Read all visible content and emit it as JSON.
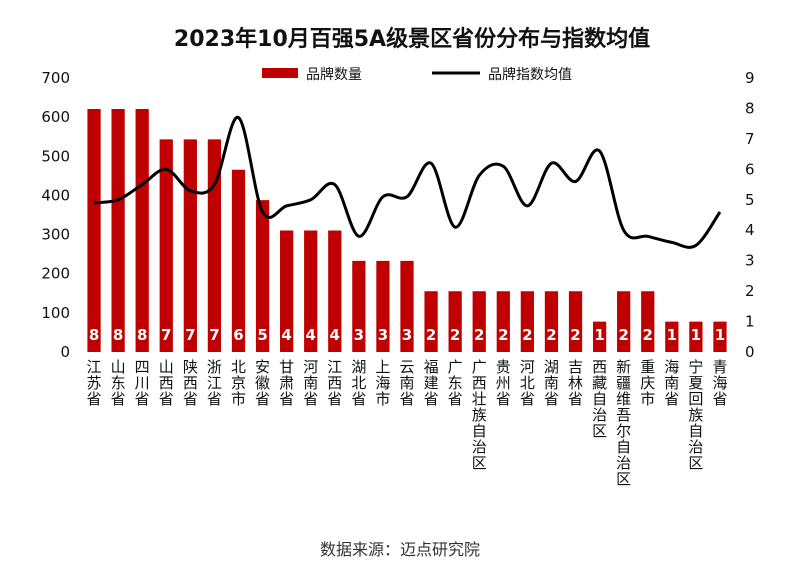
{
  "chart_data": {
    "type": "bar",
    "title": "2023年10月百强5A级景区省份分布与指数均值",
    "source": "数据来源：迈点研究院",
    "categories": [
      "江苏省",
      "山东省",
      "四川省",
      "山西省",
      "陕西省",
      "浙江省",
      "北京市",
      "安徽省",
      "甘肃省",
      "河南省",
      "江西省",
      "湖北省",
      "上海市",
      "云南省",
      "福建省",
      "广东省",
      "广西壮族自治区",
      "贵州省",
      "河北省",
      "湖南省",
      "吉林省",
      "西藏自治区",
      "新疆维吾尔自治区",
      "重庆市",
      "海南省",
      "宁夏回族自治区",
      "青海省"
    ],
    "series": [
      {
        "name": "品牌数量",
        "axis": "left",
        "type": "bar",
        "color": "#c00000",
        "values": [
          8,
          8,
          8,
          7,
          7,
          7,
          6,
          5,
          4,
          4,
          4,
          3,
          3,
          3,
          2,
          2,
          2,
          2,
          2,
          2,
          2,
          1,
          2,
          2,
          1,
          1,
          1
        ]
      },
      {
        "name": "品牌指数均值",
        "axis": "right",
        "type": "line",
        "color": "#000000",
        "values": [
          4.9,
          5.0,
          5.5,
          6.0,
          5.3,
          5.5,
          7.7,
          4.6,
          4.8,
          5.0,
          5.5,
          3.8,
          5.1,
          5.1,
          6.2,
          4.1,
          5.8,
          6.1,
          4.8,
          6.2,
          5.6,
          6.6,
          4.0,
          3.8,
          3.6,
          3.5,
          4.6
        ]
      }
    ],
    "y_left": {
      "ticks": [
        0,
        100,
        200,
        300,
        400,
        500,
        600,
        700
      ],
      "ylim": [
        0,
        700
      ]
    },
    "y_right": {
      "ticks": [
        0,
        1,
        2,
        3,
        4,
        5,
        6,
        7,
        8,
        9
      ],
      "ylim": [
        0,
        9
      ]
    },
    "legend": [
      "品牌数量",
      "品牌指数均值"
    ],
    "legend_placement": "top",
    "grid": false
  }
}
